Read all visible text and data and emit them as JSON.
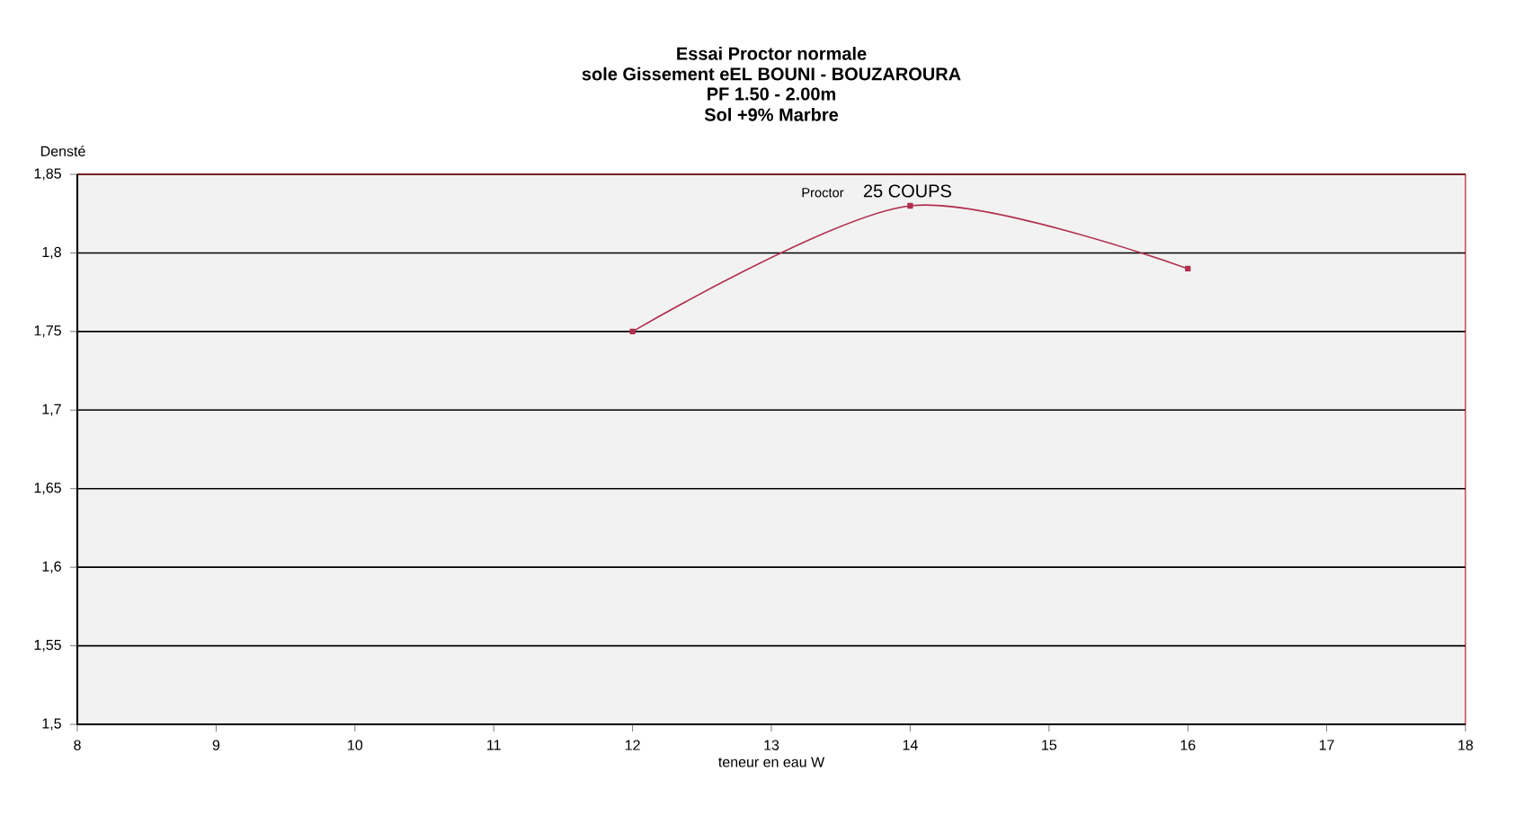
{
  "chart_data": {
    "type": "line",
    "title": "Essai Proctor normale",
    "subtitle": "sole Gissement eEL BOUNI - BOUZAROURA",
    "annotations": [
      "PF 1.50 - 2.00m",
      "Sol +9% Marbre",
      "Proctor"
    ],
    "xlabel": "teneur en eau W",
    "ylabel": "Densté",
    "x": [
      12,
      14,
      16
    ],
    "series": [
      {
        "name": "25 COUPS",
        "color": "#b03050",
        "values": [
          1.75,
          1.83,
          1.79
        ]
      }
    ],
    "xlim": [
      8,
      18
    ],
    "xticks": [
      8,
      9,
      10,
      11,
      12,
      13,
      14,
      15,
      16,
      17,
      18
    ],
    "ylim": [
      1.5,
      1.85
    ],
    "yticks": [
      {
        "value": 1.5,
        "label": "1,5"
      },
      {
        "value": 1.55,
        "label": "1,55"
      },
      {
        "value": 1.6,
        "label": "1,6"
      },
      {
        "value": 1.65,
        "label": "1,65"
      },
      {
        "value": 1.7,
        "label": "1,7"
      },
      {
        "value": 1.75,
        "label": "1,75"
      },
      {
        "value": 1.8,
        "label": "1,8"
      },
      {
        "value": 1.85,
        "label": "1,85"
      }
    ],
    "grid": "y",
    "marker": "square",
    "line_style": "solid"
  }
}
